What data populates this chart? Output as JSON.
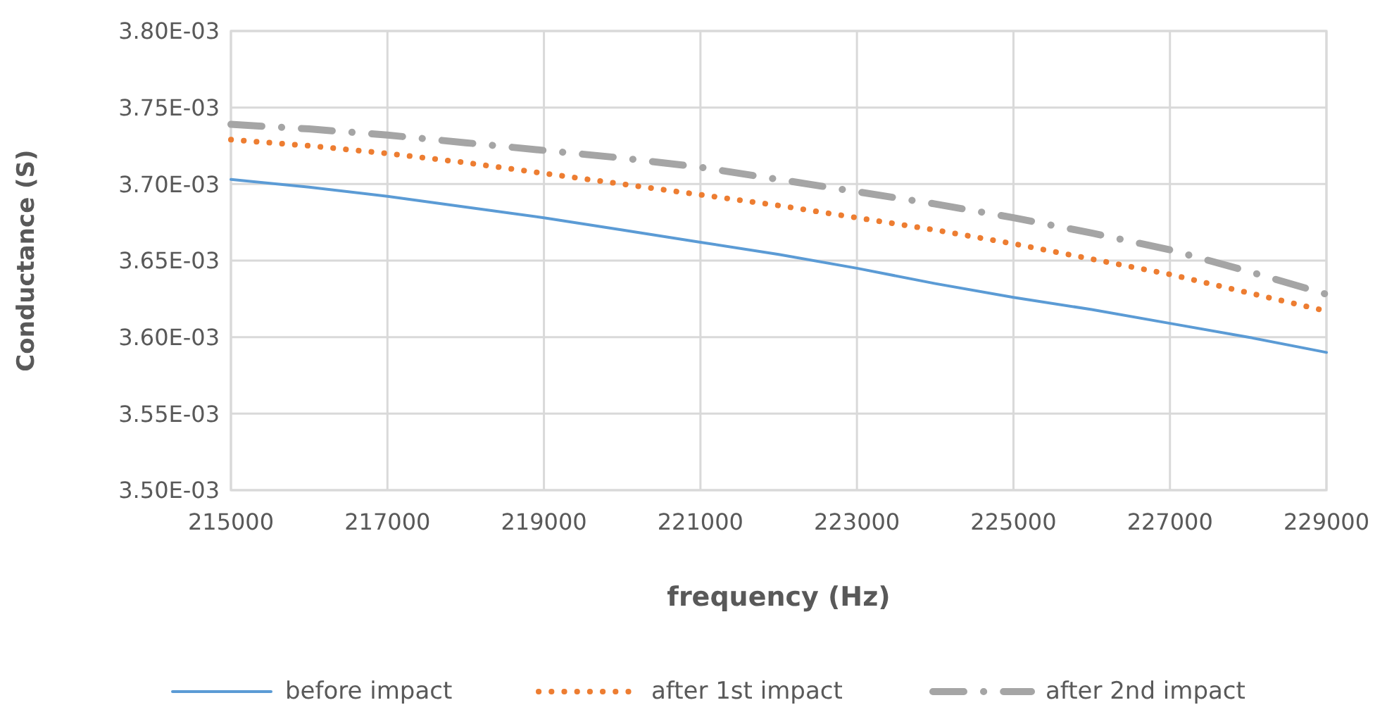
{
  "chart_data": {
    "type": "line",
    "xlabel": "frequency (Hz)",
    "ylabel": "Conductance (S)",
    "x": [
      215000,
      216000,
      217000,
      218000,
      219000,
      220000,
      221000,
      222000,
      223000,
      224000,
      225000,
      226000,
      227000,
      228000,
      229000
    ],
    "series": [
      {
        "name": "before impact",
        "color": "#5b9bd5",
        "line_style": "solid",
        "values": [
          0.003703,
          0.003698,
          0.003692,
          0.003685,
          0.003678,
          0.00367,
          0.003662,
          0.003654,
          0.003645,
          0.003635,
          0.003626,
          0.003618,
          0.003609,
          0.0036,
          0.00359
        ]
      },
      {
        "name": "after 1st impact",
        "color": "#ed7d31",
        "line_style": "dotted",
        "values": [
          0.003729,
          0.003725,
          0.00372,
          0.003714,
          0.003707,
          0.0037,
          0.003693,
          0.003686,
          0.003678,
          0.00367,
          0.003661,
          0.003651,
          0.003641,
          0.003629,
          0.003617
        ]
      },
      {
        "name": "after 2nd impact",
        "color": "#a5a5a5",
        "line_style": "dashed",
        "values": [
          0.003739,
          0.003736,
          0.003732,
          0.003727,
          0.003722,
          0.003717,
          0.003711,
          0.003703,
          0.003695,
          0.003687,
          0.003678,
          0.003668,
          0.003657,
          0.003643,
          0.003628
        ]
      }
    ],
    "xlim": [
      215000,
      229000
    ],
    "xticks": [
      215000,
      217000,
      219000,
      221000,
      223000,
      225000,
      227000,
      229000
    ],
    "ylim": [
      0.0035,
      0.0038
    ],
    "yticks": [
      {
        "value": 0.0035,
        "label": "3.50E-03"
      },
      {
        "value": 0.00355,
        "label": "3.55E-03"
      },
      {
        "value": 0.0036,
        "label": "3.60E-03"
      },
      {
        "value": 0.00365,
        "label": "3.65E-03"
      },
      {
        "value": 0.0037,
        "label": "3.70E-03"
      },
      {
        "value": 0.00375,
        "label": "3.75E-03"
      },
      {
        "value": 0.0038,
        "label": "3.80E-03"
      }
    ],
    "grid": true,
    "legend": "bottom",
    "marker": "none"
  }
}
